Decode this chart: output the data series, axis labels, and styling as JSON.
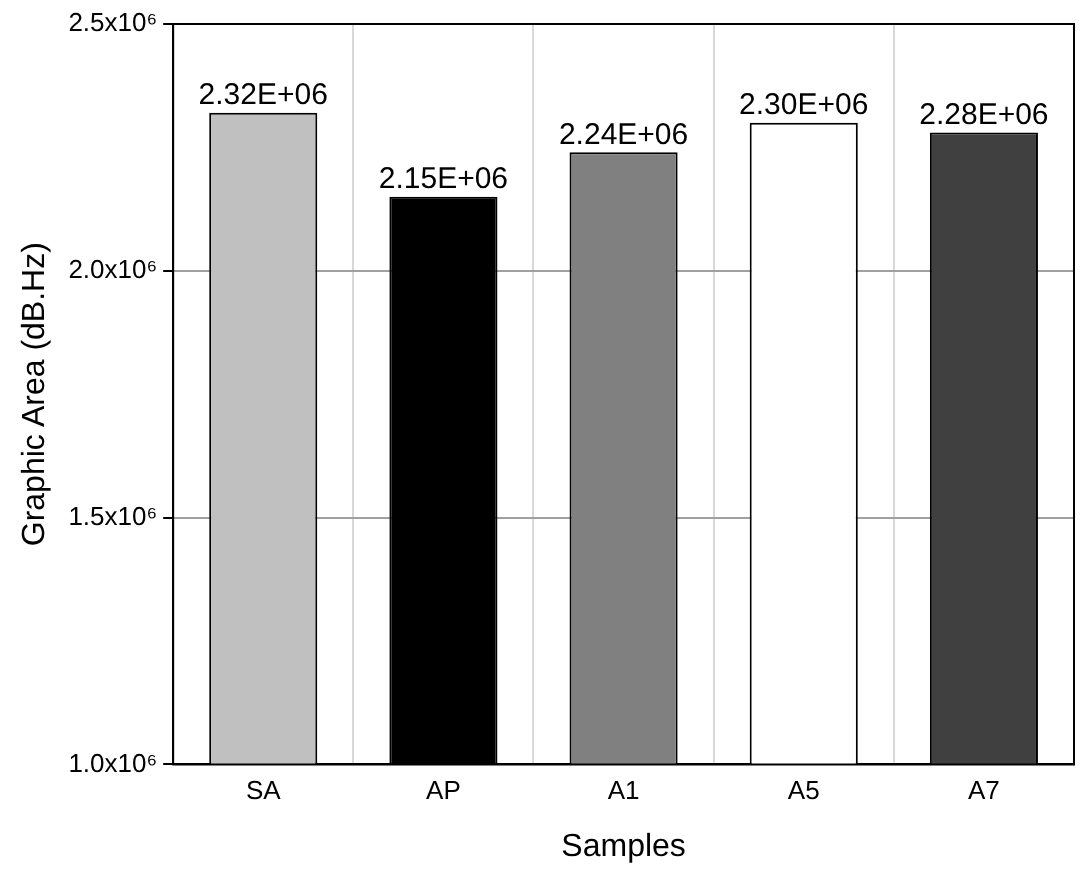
{
  "chart_data": {
    "type": "bar",
    "xlabel": "Samples",
    "ylabel": "Graphic Area (dB.Hz)",
    "categories": [
      "SA",
      "AP",
      "A1",
      "A5",
      "A7"
    ],
    "values": [
      2320000,
      2150000,
      2240000,
      2300000,
      2280000
    ],
    "colors": [
      "#c0c0c0",
      "#000000",
      "#808080",
      "#ffffff",
      "#404040"
    ],
    "value_labels": [
      "2.32E+06",
      "2.15E+06",
      "2.24E+06",
      "2.30E+06",
      "2.28E+06"
    ],
    "ylim": [
      1000000,
      2500000
    ],
    "yticks": [
      {
        "value": 1000000,
        "label": "1.0x10⁶"
      },
      {
        "value": 1500000,
        "label": "1.5x10⁶"
      },
      {
        "value": 2000000,
        "label": "2.0x10⁶"
      },
      {
        "value": 2500000,
        "label": "2.5x10⁶"
      }
    ],
    "grid": true,
    "legend": false
  }
}
